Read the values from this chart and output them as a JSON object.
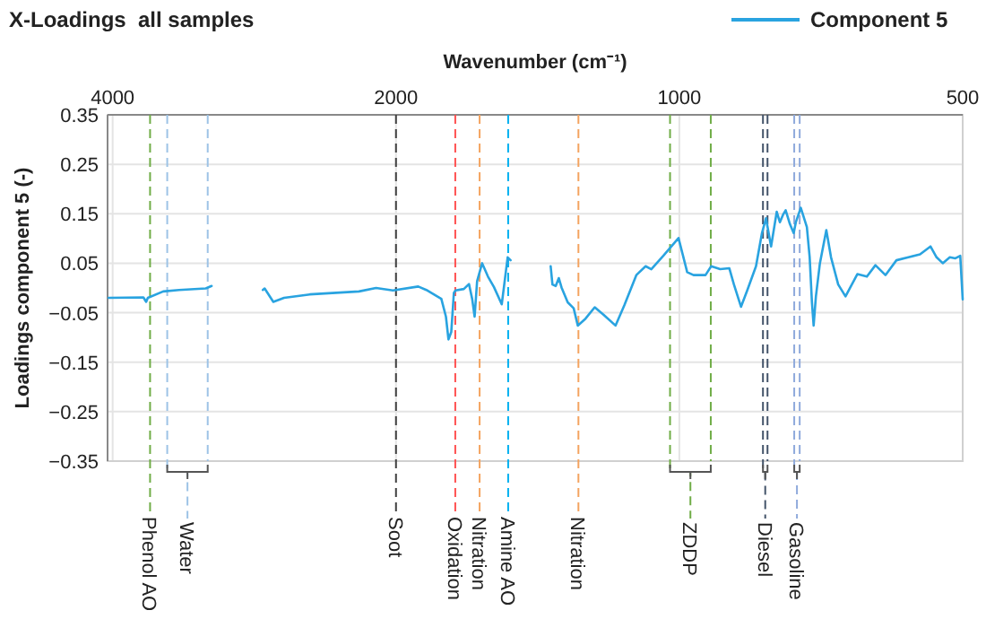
{
  "chart_data": {
    "type": "line",
    "title": "X-Loadings  all samples",
    "xlabel": "Wavenumber (cm⁻¹)",
    "ylabel": "Loadings component 5 (-)",
    "log": "x",
    "xlim": [
      4050,
      500
    ],
    "xticks": [
      4000,
      2000,
      1000,
      500
    ],
    "ylim": [
      -0.35,
      0.35
    ],
    "yticks": [
      -0.35,
      -0.25,
      -0.15,
      -0.05,
      0.05,
      0.15,
      0.25,
      0.35
    ],
    "grid": true,
    "legend": "top right",
    "line_style": "solid",
    "marker": "none",
    "series": [
      {
        "name": "Component 5",
        "color": "#29a3e0",
        "x": [
          4040,
          3710,
          3685,
          3670,
          3535,
          3400,
          3185,
          3140,
          3000,
          2770,
          2758,
          2700,
          2630,
          2470,
          2190,
          2100,
          2015,
          1894,
          1857,
          1790,
          1770,
          1759,
          1747,
          1736,
          1729,
          1694,
          1673,
          1660,
          1650,
          1640,
          1620,
          1597,
          1574,
          1544,
          1522,
          1511,
          1450,
          1370,
          1364,
          1353,
          1343,
          1334,
          1314,
          1295,
          1282,
          1258,
          1230,
          1204,
          1169,
          1144,
          1111,
          1086,
          1071,
          1040,
          1002,
          981,
          966,
          938,
          925,
          905,
          885,
          875,
          860,
          847,
          829,
          817,
          809,
          799,
          788,
          782,
          776,
          771,
          763,
          756,
          752,
          743,
          732,
          727,
          723,
          720,
          716,
          709,
          698,
          690,
          678,
          666,
          647,
          632,
          619,
          604,
          588,
          571,
          555,
          541,
          533,
          525,
          516,
          509,
          503,
          500
        ],
        "values": [
          -0.02,
          -0.019,
          -0.028,
          -0.02,
          -0.007,
          -0.004,
          -0.001,
          0.004,
          null,
          -0.004,
          -0.001,
          -0.028,
          -0.02,
          -0.013,
          -0.007,
          0.0,
          -0.005,
          0.003,
          -0.004,
          -0.022,
          -0.058,
          -0.104,
          -0.089,
          -0.01,
          -0.005,
          -0.002,
          0.008,
          -0.022,
          -0.058,
          0.014,
          0.05,
          0.023,
          0.002,
          -0.033,
          0.062,
          0.056,
          null,
          0.044,
          0.007,
          0.004,
          0.02,
          0.001,
          -0.029,
          -0.041,
          -0.076,
          -0.062,
          -0.039,
          -0.054,
          -0.076,
          -0.035,
          0.026,
          0.044,
          0.038,
          0.065,
          0.101,
          0.032,
          0.026,
          0.026,
          0.044,
          0.038,
          0.04,
          0.007,
          -0.038,
          -0.005,
          0.044,
          0.111,
          0.141,
          0.084,
          0.154,
          0.133,
          0.148,
          0.157,
          0.129,
          0.111,
          0.133,
          0.162,
          0.123,
          0.062,
          -0.029,
          -0.076,
          -0.017,
          0.05,
          0.117,
          0.062,
          0.007,
          -0.017,
          0.028,
          0.023,
          0.046,
          0.026,
          0.056,
          0.062,
          0.068,
          0.084,
          0.062,
          0.05,
          0.062,
          0.06,
          0.065,
          -0.023
        ]
      }
    ],
    "ref_lines": [
      {
        "axis": "x",
        "value": 3650,
        "label": "Phenol AO",
        "color": "#70ad47",
        "line_style": "dashed"
      },
      {
        "axis": "x",
        "value": 3500,
        "label": "Water",
        "color": "#9dc3e6",
        "line_style": "dashed"
      },
      {
        "axis": "x",
        "value": 3170,
        "label": null,
        "color": "#9dc3e6",
        "line_style": "dashed"
      },
      {
        "axis": "x",
        "value": 2000,
        "label": "Soot",
        "color": "#404040",
        "line_style": "dashed"
      },
      {
        "axis": "x",
        "value": 1730,
        "label": "Oxidation",
        "color": "#ff5050",
        "line_style": "dashed"
      },
      {
        "axis": "x",
        "value": 1630,
        "label": "Nitration",
        "color": "#f4a460",
        "line_style": "dashed"
      },
      {
        "axis": "x",
        "value": 1520,
        "label": "Amine AO",
        "color": "#00b0f0",
        "line_style": "dashed"
      },
      {
        "axis": "x",
        "value": 1280,
        "label": "Nitration",
        "color": "#f4a460",
        "line_style": "dashed"
      },
      {
        "axis": "x",
        "value": 1023,
        "label": "ZDDP",
        "color": "#70ad47",
        "line_style": "dashed"
      },
      {
        "axis": "x",
        "value": 926,
        "label": null,
        "color": "#70ad47",
        "line_style": "dashed"
      },
      {
        "axis": "x",
        "value": 815,
        "label": "Diesel",
        "color": "#44546a",
        "line_style": "dashed"
      },
      {
        "axis": "x",
        "value": 806,
        "label": null,
        "color": "#44546a",
        "line_style": "dashed"
      },
      {
        "axis": "x",
        "value": 755,
        "label": "Gasoline",
        "color": "#8faadc",
        "line_style": "dashed"
      },
      {
        "axis": "x",
        "value": 745,
        "label": null,
        "color": "#8faadc",
        "line_style": "dashed"
      }
    ]
  }
}
